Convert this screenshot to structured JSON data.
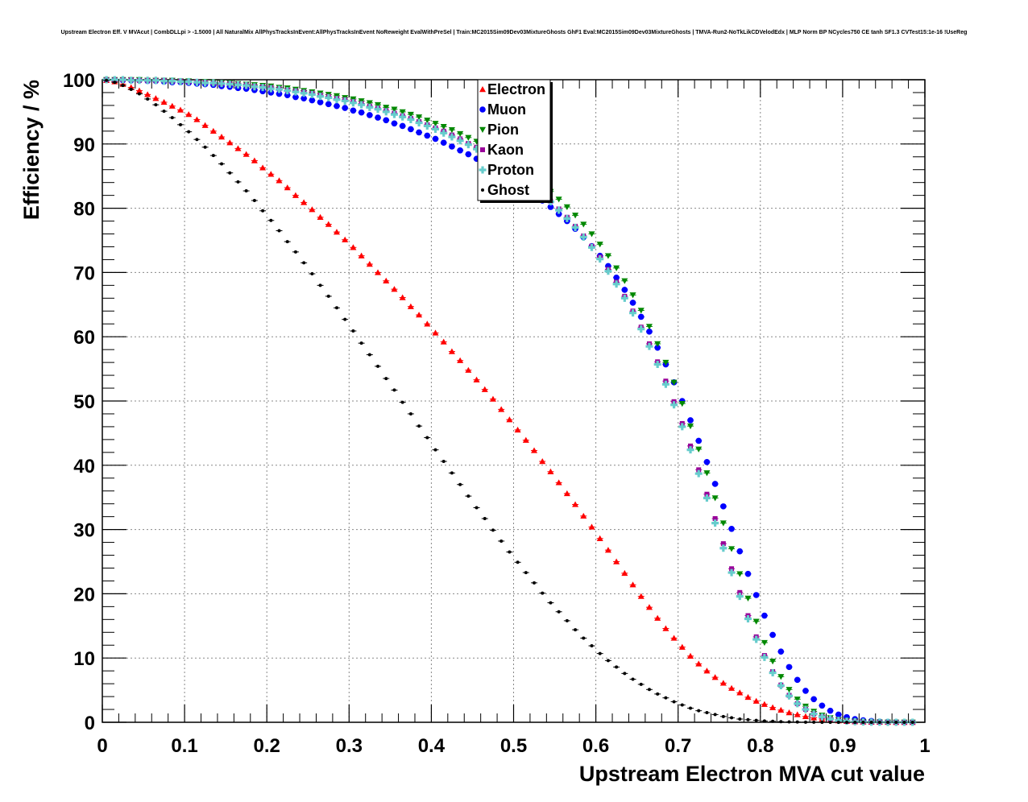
{
  "chart_data": {
    "type": "scatter",
    "title": "Upstream Electron Eff. V MVAcut | CombDLLpi > -1.5000 | All NaturalMix AllPhysTracksInEvent:AllPhysTracksInEvent NoReweight EvalWithPreSel | Train:MC2015Sim09Dev03MixtureGhosts GhF1 Eval:MC2015Sim09Dev03MixtureGhosts | TMVA-Run2-NoTkLikCDVelodEdx | MLP Norm BP NCycles750 CE tanh SF1.3 CVTest15:1e-16 !UseReg",
    "xlabel": "Upstream Electron MVA cut value",
    "ylabel": "Efficiency / %",
    "xlim": [
      0,
      1
    ],
    "ylim": [
      0,
      100
    ],
    "x_ticks": [
      "0",
      "0.1",
      "0.2",
      "0.3",
      "0.4",
      "0.5",
      "0.6",
      "0.7",
      "0.8",
      "0.9",
      "1"
    ],
    "y_ticks": [
      "0",
      "10",
      "20",
      "30",
      "40",
      "50",
      "60",
      "70",
      "80",
      "90",
      "100"
    ],
    "grid": true,
    "legend_position": "top-center",
    "x": [
      0.005,
      0.015,
      0.025,
      0.035,
      0.045,
      0.055,
      0.065,
      0.075,
      0.085,
      0.095,
      0.105,
      0.115,
      0.125,
      0.135,
      0.145,
      0.155,
      0.165,
      0.175,
      0.185,
      0.195,
      0.205,
      0.215,
      0.225,
      0.235,
      0.245,
      0.255,
      0.265,
      0.275,
      0.285,
      0.295,
      0.305,
      0.315,
      0.325,
      0.335,
      0.345,
      0.355,
      0.365,
      0.375,
      0.385,
      0.395,
      0.405,
      0.415,
      0.425,
      0.435,
      0.445,
      0.455,
      0.465,
      0.475,
      0.485,
      0.495,
      0.505,
      0.515,
      0.525,
      0.535,
      0.545,
      0.555,
      0.565,
      0.575,
      0.585,
      0.595,
      0.605,
      0.615,
      0.625,
      0.635,
      0.645,
      0.655,
      0.665,
      0.675,
      0.685,
      0.695,
      0.705,
      0.715,
      0.725,
      0.735,
      0.745,
      0.755,
      0.765,
      0.775,
      0.785,
      0.795,
      0.805,
      0.815,
      0.825,
      0.835,
      0.845,
      0.855,
      0.865,
      0.875,
      0.885,
      0.895,
      0.905,
      0.915,
      0.925,
      0.935,
      0.945,
      0.955,
      0.965,
      0.975,
      0.985
    ],
    "series": [
      {
        "name": "Electron",
        "color": "#ff0000",
        "marker": "triangle-up",
        "values": [
          99.9,
          99.7,
          99.3,
          98.8,
          98.3,
          97.7,
          97.1,
          96.5,
          95.9,
          95.3,
          94.6,
          93.8,
          92.9,
          92.0,
          91.1,
          90.2,
          89.3,
          88.4,
          87.4,
          86.3,
          85.3,
          84.3,
          83.2,
          82.0,
          80.9,
          79.8,
          78.6,
          77.5,
          76.3,
          75.1,
          73.9,
          72.6,
          71.3,
          70.0,
          68.7,
          67.4,
          66.1,
          64.7,
          63.4,
          62.0,
          60.6,
          59.2,
          57.7,
          56.3,
          54.8,
          53.3,
          51.8,
          50.3,
          48.7,
          47.1,
          45.5,
          43.9,
          42.3,
          40.6,
          39.0,
          37.3,
          35.6,
          33.9,
          32.1,
          30.4,
          28.6,
          26.8,
          25.0,
          23.2,
          21.4,
          19.6,
          17.9,
          16.2,
          14.6,
          13.1,
          11.7,
          10.3,
          9.1,
          8.0,
          7.0,
          6.1,
          5.3,
          4.6,
          3.9,
          3.3,
          2.8,
          2.3,
          1.9,
          1.5,
          1.2,
          0.9,
          0.7,
          0.5,
          0.35,
          0.25,
          0.15,
          0.1,
          0.05,
          0.03,
          0.02,
          0.01,
          0.0,
          0.0,
          0.0
        ]
      },
      {
        "name": "Muon",
        "color": "#0000ff",
        "marker": "circle",
        "values": [
          100.0,
          100.0,
          99.9,
          99.9,
          99.9,
          99.8,
          99.8,
          99.7,
          99.6,
          99.6,
          99.5,
          99.4,
          99.3,
          99.2,
          99.0,
          98.9,
          98.7,
          98.6,
          98.4,
          98.2,
          98.0,
          97.8,
          97.6,
          97.3,
          97.1,
          96.8,
          96.5,
          96.2,
          95.9,
          95.6,
          95.2,
          94.9,
          94.5,
          94.1,
          93.7,
          93.2,
          92.8,
          92.3,
          91.8,
          91.3,
          90.8,
          90.2,
          89.6,
          89.0,
          88.4,
          87.7,
          87.0,
          86.3,
          85.5,
          84.7,
          83.9,
          83.0,
          82.1,
          81.2,
          80.2,
          79.1,
          78.0,
          76.8,
          75.5,
          74.1,
          72.6,
          71.0,
          69.2,
          67.3,
          65.3,
          63.1,
          60.8,
          58.3,
          55.7,
          52.9,
          50.0,
          47.0,
          43.8,
          40.5,
          37.1,
          33.6,
          30.1,
          26.6,
          23.1,
          19.8,
          16.6,
          13.6,
          11.0,
          8.6,
          6.6,
          4.9,
          3.6,
          2.6,
          1.8,
          1.2,
          0.8,
          0.5,
          0.3,
          0.2,
          0.1,
          0.05,
          0.02,
          0.0,
          0.0
        ]
      },
      {
        "name": "Pion",
        "color": "#008800",
        "marker": "triangle-down",
        "values": [
          100.0,
          100.0,
          100.0,
          100.0,
          100.0,
          99.9,
          99.9,
          99.9,
          99.9,
          99.8,
          99.8,
          99.7,
          99.7,
          99.6,
          99.5,
          99.5,
          99.4,
          99.3,
          99.2,
          99.1,
          99.0,
          98.8,
          98.7,
          98.5,
          98.3,
          98.1,
          97.9,
          97.7,
          97.5,
          97.2,
          97.0,
          96.7,
          96.4,
          96.1,
          95.7,
          95.4,
          95.0,
          94.6,
          94.2,
          93.7,
          93.2,
          92.7,
          92.2,
          91.6,
          91.0,
          90.4,
          89.7,
          89.0,
          88.2,
          87.4,
          86.6,
          85.7,
          84.7,
          83.7,
          82.6,
          81.4,
          80.2,
          78.9,
          77.5,
          76.0,
          74.4,
          72.6,
          70.7,
          68.7,
          66.5,
          64.1,
          61.6,
          58.9,
          56.0,
          52.9,
          49.6,
          46.1,
          42.5,
          38.8,
          34.9,
          31.0,
          27.0,
          23.1,
          19.3,
          15.7,
          12.4,
          9.5,
          7.1,
          5.1,
          3.6,
          2.5,
          1.7,
          1.1,
          0.7,
          0.4,
          0.25,
          0.15,
          0.08,
          0.04,
          0.02,
          0.01,
          0.0,
          0.0,
          0.0
        ]
      },
      {
        "name": "Kaon",
        "color": "#990099",
        "marker": "square",
        "values": [
          100.0,
          100.0,
          100.0,
          100.0,
          99.9,
          99.9,
          99.9,
          99.9,
          99.8,
          99.8,
          99.7,
          99.7,
          99.6,
          99.5,
          99.4,
          99.4,
          99.3,
          99.2,
          99.0,
          98.9,
          98.8,
          98.6,
          98.4,
          98.3,
          98.1,
          97.9,
          97.6,
          97.4,
          97.1,
          96.9,
          96.6,
          96.3,
          95.9,
          95.6,
          95.2,
          94.8,
          94.4,
          94.0,
          93.5,
          93.0,
          92.5,
          92.0,
          91.4,
          90.8,
          90.1,
          89.5,
          88.7,
          88.0,
          87.2,
          86.3,
          85.4,
          84.4,
          83.4,
          82.3,
          81.1,
          79.9,
          78.6,
          77.2,
          75.7,
          74.1,
          72.4,
          70.5,
          68.5,
          66.3,
          64.0,
          61.5,
          58.9,
          56.1,
          53.1,
          49.9,
          46.5,
          43.0,
          39.3,
          35.5,
          31.7,
          27.8,
          23.9,
          20.2,
          16.6,
          13.3,
          10.4,
          7.9,
          5.8,
          4.2,
          2.9,
          2.0,
          1.3,
          0.85,
          0.5,
          0.3,
          0.18,
          0.1,
          0.05,
          0.02,
          0.01,
          0.0,
          0.0,
          0.0,
          0.0
        ]
      },
      {
        "name": "Proton",
        "color": "#66cccc",
        "marker": "cross",
        "values": [
          100.0,
          100.0,
          100.0,
          99.9,
          99.9,
          99.9,
          99.9,
          99.8,
          99.8,
          99.7,
          99.7,
          99.6,
          99.5,
          99.5,
          99.4,
          99.3,
          99.2,
          99.1,
          98.9,
          98.8,
          98.6,
          98.5,
          98.3,
          98.1,
          97.9,
          97.7,
          97.4,
          97.2,
          96.9,
          96.7,
          96.4,
          96.1,
          95.7,
          95.4,
          95.0,
          94.6,
          94.2,
          93.8,
          93.3,
          92.8,
          92.3,
          91.7,
          91.1,
          90.5,
          89.9,
          89.2,
          88.5,
          87.7,
          86.9,
          86.1,
          85.2,
          84.2,
          83.2,
          82.1,
          81.0,
          79.7,
          78.4,
          77.0,
          75.5,
          73.9,
          72.1,
          70.2,
          68.2,
          66.0,
          63.7,
          61.2,
          58.5,
          55.7,
          52.6,
          49.4,
          46.0,
          42.4,
          38.7,
          34.9,
          31.0,
          27.1,
          23.3,
          19.6,
          16.1,
          12.9,
          10.1,
          7.7,
          5.7,
          4.1,
          2.9,
          2.0,
          1.3,
          0.85,
          0.5,
          0.3,
          0.18,
          0.1,
          0.05,
          0.02,
          0.01,
          0.0,
          0.0,
          0.0,
          0.0
        ]
      },
      {
        "name": "Ghost",
        "color": "#000000",
        "marker": "small-dot",
        "values": [
          99.9,
          99.6,
          99.1,
          98.5,
          97.8,
          97.0,
          96.1,
          95.1,
          94.1,
          93.0,
          91.9,
          90.7,
          89.5,
          88.2,
          86.9,
          85.5,
          84.1,
          82.7,
          81.2,
          79.6,
          78.1,
          76.5,
          74.8,
          73.2,
          71.5,
          69.8,
          68.0,
          66.3,
          64.5,
          62.7,
          60.9,
          59.0,
          57.2,
          55.4,
          53.5,
          51.7,
          49.8,
          48.0,
          46.1,
          44.3,
          42.4,
          40.6,
          38.8,
          37.0,
          35.2,
          33.4,
          31.7,
          29.9,
          28.2,
          26.5,
          24.9,
          23.3,
          21.7,
          20.1,
          18.6,
          17.2,
          15.8,
          14.4,
          13.1,
          11.9,
          10.7,
          9.6,
          8.6,
          7.6,
          6.7,
          5.9,
          5.1,
          4.4,
          3.8,
          3.2,
          2.7,
          2.2,
          1.8,
          1.5,
          1.2,
          0.9,
          0.7,
          0.5,
          0.4,
          0.3,
          0.2,
          0.15,
          0.1,
          0.06,
          0.04,
          0.02,
          0.01,
          0.0,
          0.0,
          0.0,
          0.0,
          0.0,
          0.0,
          0.0,
          0.0,
          0.0,
          0.0,
          0.0,
          0.0
        ]
      }
    ]
  }
}
